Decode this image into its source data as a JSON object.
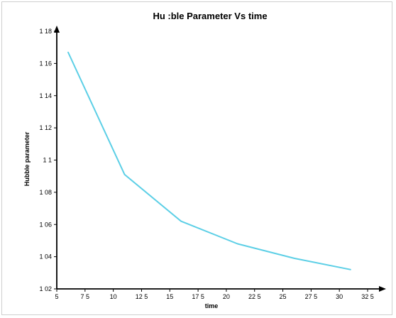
{
  "chart_data": {
    "type": "line",
    "title": "Hu :ble Parameter Vs time",
    "xlabel": "time",
    "ylabel": "Hubble parameter",
    "xlim": [
      5,
      32.5
    ],
    "ylim": [
      1.02,
      1.18
    ],
    "x_ticks": [
      "5",
      "7 5",
      "10",
      "12 5",
      "15",
      "17 5",
      "20",
      "22 5",
      "25",
      "27 5",
      "30",
      "32 5"
    ],
    "y_ticks": [
      "1 02",
      "1 04",
      "1 06",
      "1 08",
      "1 1",
      "1 12",
      "1 14",
      "1 16",
      "1 18"
    ],
    "grid": false,
    "series": [
      {
        "color": "#5ccfe6",
        "x": [
          6,
          11,
          16,
          21,
          26,
          31
        ],
        "y": [
          1.167,
          1.091,
          1.062,
          1.048,
          1.039,
          1.032
        ]
      }
    ]
  }
}
